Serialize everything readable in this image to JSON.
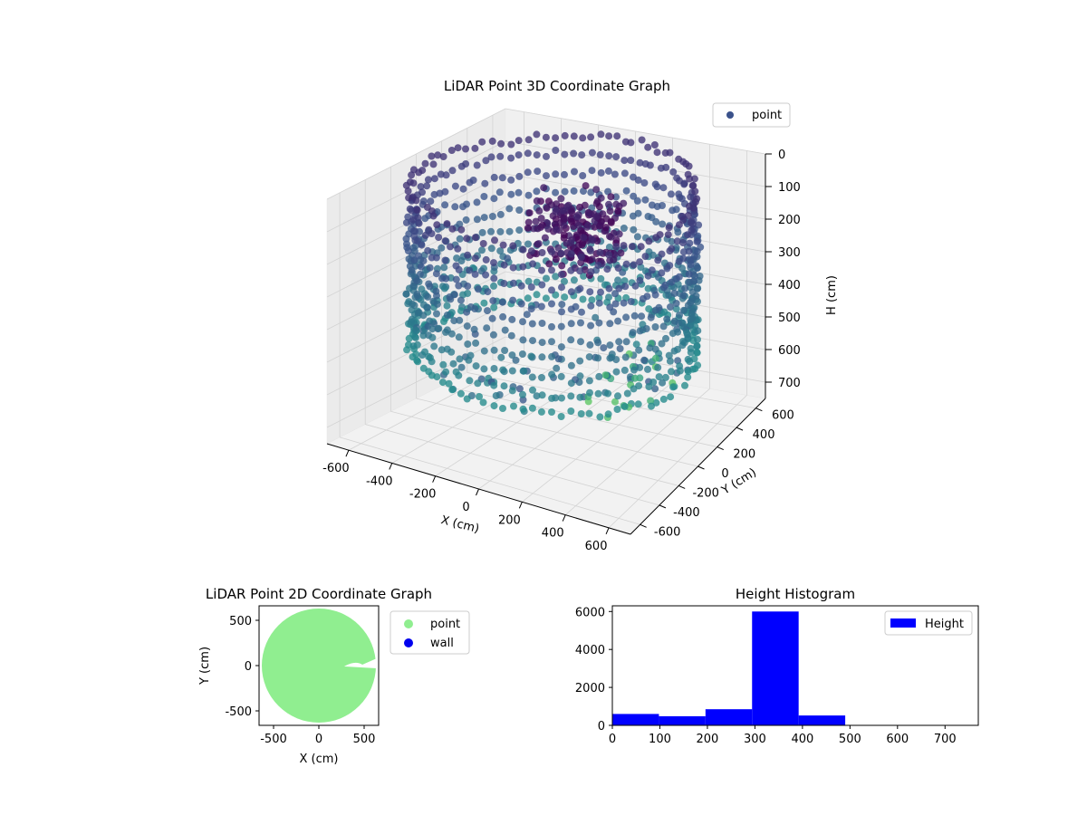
{
  "colors": {
    "point_3d": "#3b528b",
    "point_2d": "#90ee90",
    "wall": "#0000ee",
    "histogram": "#0000ff",
    "pane": "#f2f2f2",
    "grid": "#d3d3d3"
  },
  "chart_data": [
    {
      "type": "scatter",
      "subtype": "3d",
      "title": "LiDAR Point 3D Coordinate Graph",
      "xlabel": "X (cm)",
      "ylabel": "Y (cm)",
      "zlabel": "H (cm)",
      "xlim": [
        -700,
        700
      ],
      "ylim": [
        -700,
        700
      ],
      "zlim": [
        0,
        750
      ],
      "z_inverted": true,
      "xticks": [
        "-600",
        "-400",
        "-200",
        "0",
        "200",
        "400",
        "600"
      ],
      "yticks": [
        "-600",
        "-400",
        "-200",
        "0",
        "200",
        "400",
        "600"
      ],
      "zticks": [
        "0",
        "100",
        "200",
        "300",
        "400",
        "500",
        "600",
        "700"
      ],
      "legend": {
        "placement": "top-right",
        "entries": [
          {
            "name": "point",
            "color": "#3b528b"
          }
        ]
      },
      "series": [
        {
          "name": "point",
          "shape": "ring",
          "ring_radius_cm": 620,
          "ring_height_cm": [
            0,
            500
          ],
          "floor_ring_height_cm": [
            330,
            520
          ],
          "central_cluster": {
            "x": 0,
            "y": 0,
            "h_range": [
              50,
              220
            ]
          },
          "colormap": [
            "#440154",
            "#3b528b",
            "#21918c",
            "#5ec962"
          ]
        }
      ],
      "grid": true
    },
    {
      "type": "scatter",
      "title": "LiDAR Point 2D Coordinate Graph",
      "xlabel": "X (cm)",
      "ylabel": "Y (cm)",
      "xlim": [
        -660,
        660
      ],
      "ylim": [
        -660,
        660
      ],
      "xticks": [
        "-500",
        "0",
        "500"
      ],
      "yticks": [
        "500",
        "0",
        "-500"
      ],
      "legend": {
        "placement": "outside-right",
        "entries": [
          {
            "name": "point",
            "color": "#90ee90"
          },
          {
            "name": "wall",
            "color": "#0000ee"
          }
        ]
      },
      "series": [
        {
          "name": "point",
          "shape": "filled-disc",
          "radius_cm": 630
        },
        {
          "name": "wall",
          "values": []
        }
      ]
    },
    {
      "type": "bar",
      "subtype": "histogram",
      "title": "Height Histogram",
      "xlim": [
        0,
        770
      ],
      "ylim": [
        0,
        6300
      ],
      "xticks": [
        "0",
        "100",
        "200",
        "300",
        "400",
        "500",
        "600",
        "700"
      ],
      "yticks": [
        "0",
        "2000",
        "4000",
        "6000"
      ],
      "bin_edges": [
        0,
        98,
        196,
        294,
        392,
        490,
        588,
        686,
        784
      ],
      "values": [
        600,
        480,
        850,
        6000,
        520,
        0,
        0,
        0
      ],
      "legend": {
        "placement": "top-right",
        "entries": [
          {
            "name": "Height",
            "color": "#0000ff"
          }
        ]
      }
    }
  ]
}
